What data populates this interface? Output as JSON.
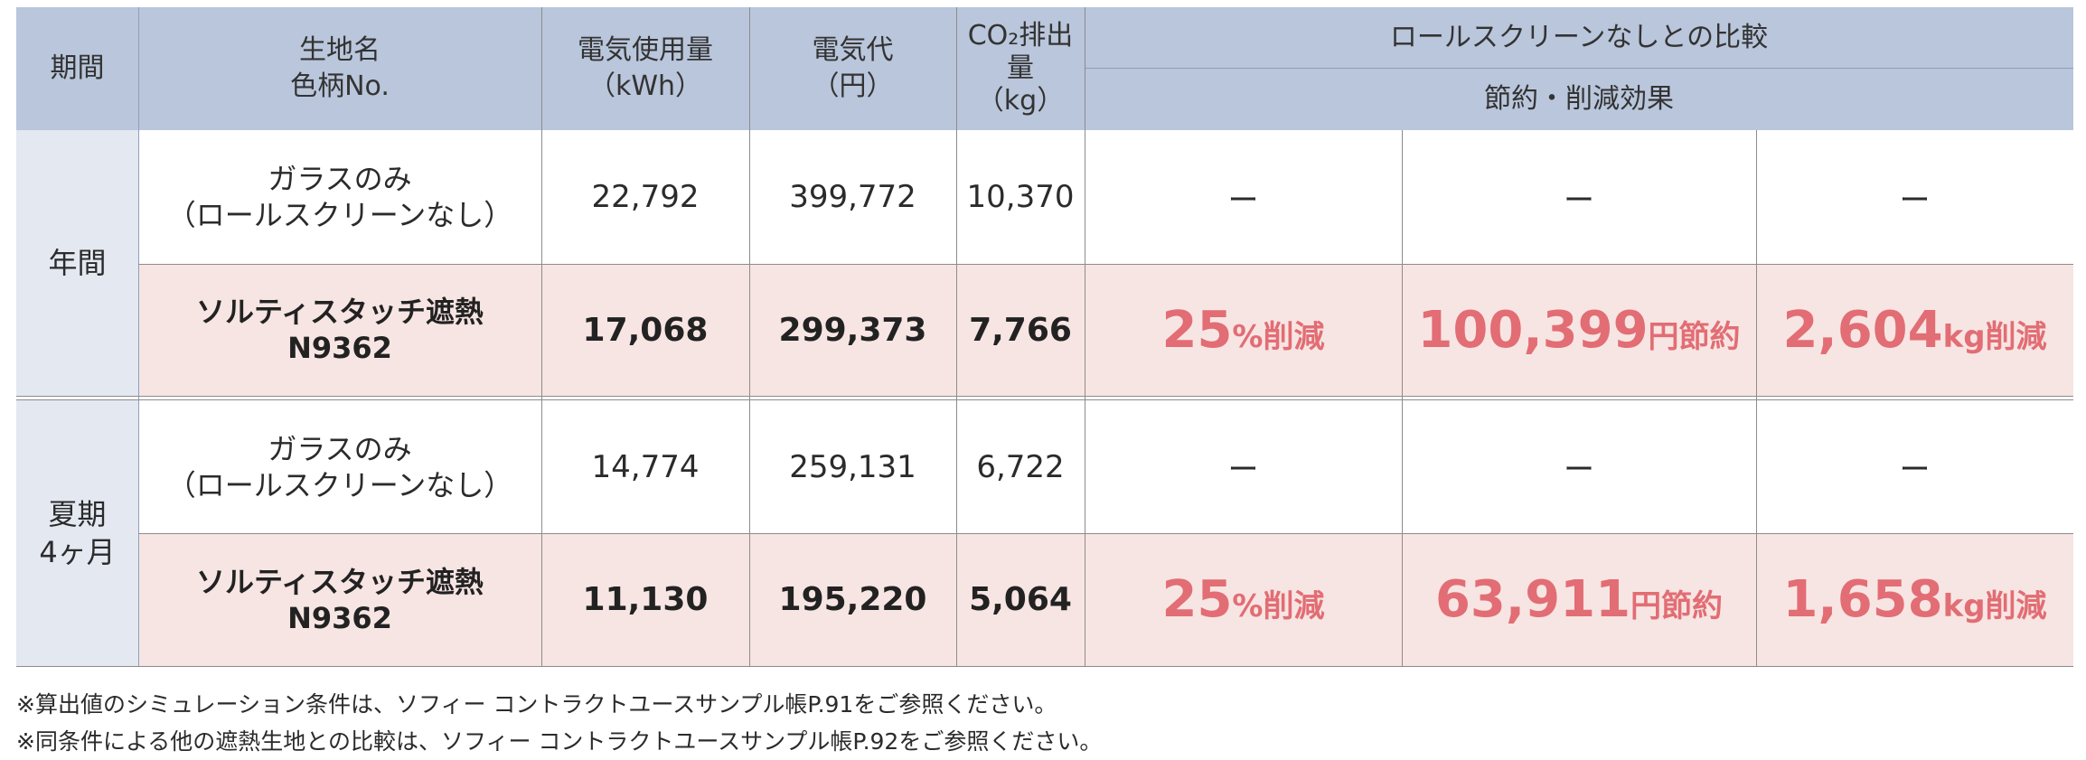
{
  "headers": {
    "period": "期間",
    "fabric": [
      "生地名",
      "色柄No."
    ],
    "electricity_use": [
      "電気使用量",
      "（kWh）"
    ],
    "electricity_cost": [
      "電気代",
      "（円）"
    ],
    "co2": [
      "CO₂排出",
      "量",
      "（kg）"
    ],
    "comparison": "ロールスクリーンなしとの比較",
    "savings": "節約・削減効果"
  },
  "groups": [
    {
      "period": [
        "年間"
      ],
      "rows": [
        {
          "name": [
            "ガラスのみ",
            "（ロールスクリーンなし）"
          ],
          "kwh": "22,792",
          "yen": "399,772",
          "co2": "10,370",
          "highlight": false,
          "eff": [
            "ー",
            "ー",
            "ー"
          ]
        },
        {
          "name": [
            "ソルティスタッチ遮熱",
            "N9362"
          ],
          "kwh": "17,068",
          "yen": "299,373",
          "co2": "7,766",
          "highlight": true,
          "pct": {
            "value": "25",
            "unit": "%削減"
          },
          "yen_save": {
            "value": "100,399",
            "unit": "円節約"
          },
          "kg_save": {
            "value": "2,604",
            "unit": "kg削減"
          }
        }
      ]
    },
    {
      "period": [
        "夏期",
        "4ヶ月"
      ],
      "rows": [
        {
          "name": [
            "ガラスのみ",
            "（ロールスクリーンなし）"
          ],
          "kwh": "14,774",
          "yen": "259,131",
          "co2": "6,722",
          "highlight": false,
          "eff": [
            "ー",
            "ー",
            "ー"
          ]
        },
        {
          "name": [
            "ソルティスタッチ遮熱",
            "N9362"
          ],
          "kwh": "11,130",
          "yen": "195,220",
          "co2": "5,064",
          "highlight": true,
          "pct": {
            "value": "25",
            "unit": "%削減"
          },
          "yen_save": {
            "value": "63,911",
            "unit": "円節約"
          },
          "kg_save": {
            "value": "1,658",
            "unit": "kg削減"
          }
        }
      ]
    }
  ],
  "notes": [
    "※算出値のシミュレーション条件は、ソフィー コントラクトユースサンプル帳P.91をご参照ください。",
    "※同条件による他の遮熱生地との比較は、ソフィー コントラクトユースサンプル帳P.92をご参照ください。"
  ],
  "colors": {
    "header": "#b9c6db",
    "period": "#e3e8f1",
    "highlight_row": "#f7e5e3",
    "saving_text": "#e26d74"
  }
}
